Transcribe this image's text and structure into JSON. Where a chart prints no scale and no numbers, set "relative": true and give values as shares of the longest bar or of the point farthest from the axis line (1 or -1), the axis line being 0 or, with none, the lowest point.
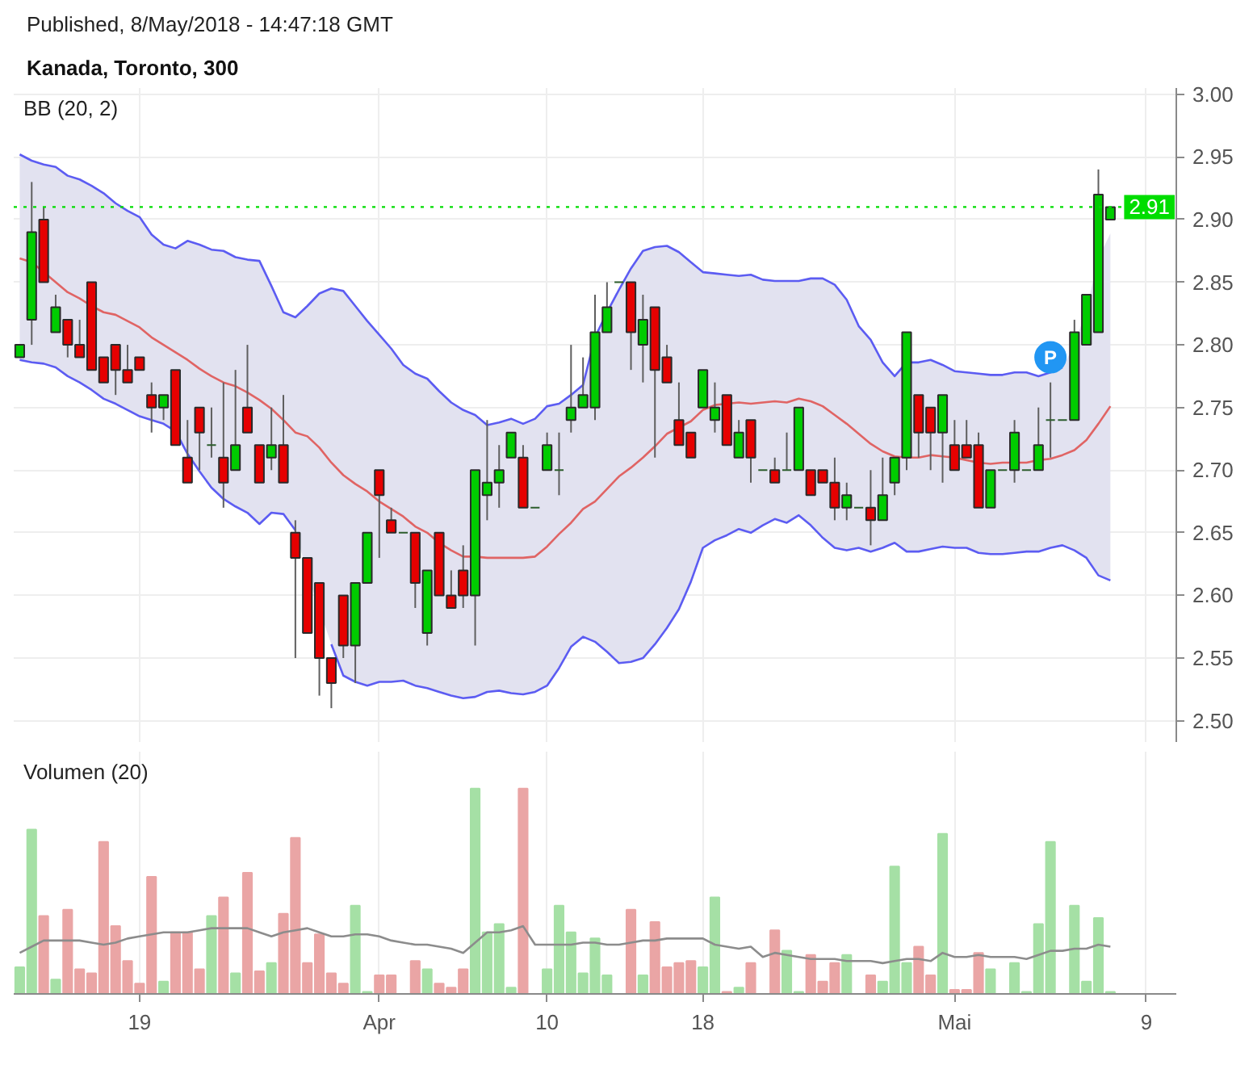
{
  "chart_data": [
    {
      "type": "candlestick",
      "title": "Kanada, Toronto, 300",
      "annotations": [
        "Published, 8/May/2018 - 14:47:18 GMT",
        "BB (20, 2)"
      ],
      "categories": [
        null,
        null,
        null,
        null,
        null,
        null,
        null,
        null,
        null,
        null,
        null,
        null,
        null,
        null,
        null,
        null,
        null,
        null,
        null,
        null,
        null,
        null,
        null,
        null,
        null,
        null,
        null,
        null,
        null,
        null,
        null,
        null,
        null,
        null,
        null,
        null,
        null,
        null,
        null,
        null,
        null,
        null,
        null,
        null,
        null,
        null,
        null,
        null,
        null,
        null,
        null,
        null,
        null,
        null,
        null,
        null,
        null,
        null,
        null,
        null,
        null,
        null,
        null,
        null,
        null,
        null,
        null,
        null,
        null,
        null,
        null,
        null,
        null,
        null,
        null,
        null,
        null,
        null,
        null,
        null,
        null,
        null,
        null,
        null,
        null,
        null,
        null,
        null,
        null,
        null,
        null,
        null,
        null,
        null,
        null,
        null,
        null
      ],
      "ohlc": [
        [
          2.79,
          2.8,
          2.79,
          2.8
        ],
        [
          2.82,
          2.93,
          2.8,
          2.89
        ],
        [
          2.9,
          2.91,
          2.85,
          2.85
        ],
        [
          2.81,
          2.84,
          2.81,
          2.83
        ],
        [
          2.82,
          2.82,
          2.79,
          2.8
        ],
        [
          2.8,
          2.82,
          2.79,
          2.79
        ],
        [
          2.85,
          2.85,
          2.78,
          2.78
        ],
        [
          2.79,
          2.79,
          2.77,
          2.77
        ],
        [
          2.8,
          2.8,
          2.76,
          2.78
        ],
        [
          2.78,
          2.8,
          2.77,
          2.77
        ],
        [
          2.79,
          2.79,
          2.78,
          2.78
        ],
        [
          2.76,
          2.77,
          2.73,
          2.75
        ],
        [
          2.75,
          2.76,
          2.74,
          2.76
        ],
        [
          2.78,
          2.78,
          2.72,
          2.72
        ],
        [
          2.71,
          2.74,
          2.69,
          2.69
        ],
        [
          2.75,
          2.75,
          2.7,
          2.73
        ],
        [
          2.72,
          2.75,
          2.71,
          2.72
        ],
        [
          2.71,
          2.77,
          2.67,
          2.69
        ],
        [
          2.7,
          2.78,
          2.7,
          2.72
        ],
        [
          2.75,
          2.8,
          2.73,
          2.73
        ],
        [
          2.72,
          2.72,
          2.69,
          2.69
        ],
        [
          2.71,
          2.75,
          2.7,
          2.72
        ],
        [
          2.72,
          2.76,
          2.69,
          2.69
        ],
        [
          2.65,
          2.66,
          2.55,
          2.63
        ],
        [
          2.63,
          2.63,
          2.57,
          2.57
        ],
        [
          2.61,
          2.61,
          2.52,
          2.55
        ],
        [
          2.55,
          2.55,
          2.51,
          2.53
        ],
        [
          2.6,
          2.6,
          2.55,
          2.56
        ],
        [
          2.56,
          2.61,
          2.53,
          2.61
        ],
        [
          2.61,
          2.65,
          2.61,
          2.65
        ],
        [
          2.7,
          2.7,
          2.63,
          2.68
        ],
        [
          2.66,
          2.67,
          2.65,
          2.65
        ],
        [
          2.65,
          2.65,
          2.65,
          2.65
        ],
        [
          2.65,
          2.65,
          2.59,
          2.61
        ],
        [
          2.57,
          2.62,
          2.56,
          2.62
        ],
        [
          2.65,
          2.65,
          2.6,
          2.6
        ],
        [
          2.6,
          2.62,
          2.59,
          2.59
        ],
        [
          2.62,
          2.64,
          2.59,
          2.6
        ],
        [
          2.6,
          2.7,
          2.56,
          2.7
        ],
        [
          2.68,
          2.74,
          2.66,
          2.69
        ],
        [
          2.69,
          2.72,
          2.67,
          2.7
        ],
        [
          2.71,
          2.73,
          2.71,
          2.73
        ],
        [
          2.71,
          2.72,
          2.67,
          2.67
        ],
        [
          2.67,
          2.67,
          2.67,
          2.67
        ],
        [
          2.7,
          2.73,
          2.7,
          2.72
        ],
        [
          2.7,
          2.73,
          2.68,
          2.7
        ],
        [
          2.74,
          2.8,
          2.73,
          2.75
        ],
        [
          2.75,
          2.79,
          2.75,
          2.76
        ],
        [
          2.75,
          2.84,
          2.74,
          2.81
        ],
        [
          2.81,
          2.85,
          2.81,
          2.83
        ],
        [
          2.85,
          2.85,
          2.85,
          2.85
        ],
        [
          2.85,
          2.85,
          2.78,
          2.81
        ],
        [
          2.8,
          2.84,
          2.77,
          2.82
        ],
        [
          2.83,
          2.83,
          2.71,
          2.78
        ],
        [
          2.79,
          2.8,
          2.77,
          2.77
        ],
        [
          2.74,
          2.77,
          2.72,
          2.72
        ],
        [
          2.73,
          2.73,
          2.71,
          2.71
        ],
        [
          2.75,
          2.78,
          2.75,
          2.78
        ],
        [
          2.74,
          2.77,
          2.73,
          2.75
        ],
        [
          2.76,
          2.76,
          2.72,
          2.72
        ],
        [
          2.71,
          2.74,
          2.71,
          2.73
        ],
        [
          2.74,
          2.74,
          2.69,
          2.71
        ],
        [
          2.7,
          2.7,
          2.7,
          2.7
        ],
        [
          2.7,
          2.71,
          2.69,
          2.69
        ],
        [
          2.7,
          2.73,
          2.7,
          2.7
        ],
        [
          2.7,
          2.75,
          2.7,
          2.75
        ],
        [
          2.7,
          2.7,
          2.68,
          2.68
        ],
        [
          2.7,
          2.7,
          2.69,
          2.69
        ],
        [
          2.69,
          2.71,
          2.66,
          2.67
        ],
        [
          2.67,
          2.69,
          2.66,
          2.68
        ],
        [
          2.67,
          2.67,
          2.67,
          2.67
        ],
        [
          2.67,
          2.7,
          2.64,
          2.66
        ],
        [
          2.66,
          2.71,
          2.66,
          2.68
        ],
        [
          2.69,
          2.71,
          2.68,
          2.71
        ],
        [
          2.71,
          2.81,
          2.7,
          2.81
        ],
        [
          2.76,
          2.76,
          2.71,
          2.73
        ],
        [
          2.75,
          2.75,
          2.7,
          2.73
        ],
        [
          2.73,
          2.76,
          2.69,
          2.76
        ],
        [
          2.72,
          2.74,
          2.7,
          2.7
        ],
        [
          2.72,
          2.74,
          2.71,
          2.71
        ],
        [
          2.72,
          2.73,
          2.67,
          2.67
        ],
        [
          2.67,
          2.7,
          2.67,
          2.7
        ],
        [
          2.7,
          2.7,
          2.7,
          2.7
        ],
        [
          2.7,
          2.74,
          2.69,
          2.73
        ],
        [
          2.7,
          2.7,
          2.7,
          2.7
        ],
        [
          2.7,
          2.75,
          2.7,
          2.72
        ],
        [
          2.74,
          2.77,
          2.71,
          2.74
        ],
        [
          2.74,
          2.74,
          2.74,
          2.74
        ],
        [
          2.74,
          2.82,
          2.74,
          2.81
        ],
        [
          2.8,
          2.84,
          2.8,
          2.84
        ],
        [
          2.81,
          2.94,
          2.81,
          2.92
        ],
        [
          2.9,
          2.91,
          2.9,
          2.91
        ],
        null,
        null,
        null,
        null,
        null
      ],
      "colors": [
        "#00cc00",
        "#00cc00",
        "#e60000",
        "#00cc00",
        "#e60000",
        "#e60000",
        "#e60000",
        "#e60000",
        "#e60000",
        "#e60000",
        "#e60000",
        "#e60000",
        "#00cc00",
        "#e60000",
        "#e60000",
        "#e60000",
        "#2d5e2d",
        "#e60000",
        "#00cc00",
        "#e60000",
        "#e60000",
        "#00cc00",
        "#e60000",
        "#e60000",
        "#e60000",
        "#e60000",
        "#e60000",
        "#e60000",
        "#00cc00",
        "#00cc00",
        "#e60000",
        "#e60000",
        "#2d5e2d",
        "#e60000",
        "#00cc00",
        "#e60000",
        "#e60000",
        "#e60000",
        "#00cc00",
        "#00cc00",
        "#00cc00",
        "#00cc00",
        "#e60000",
        "#2d5e2d",
        "#00cc00",
        "#2d5e2d",
        "#00cc00",
        "#00cc00",
        "#00cc00",
        "#00cc00",
        "#2d5e2d",
        "#e60000",
        "#00cc00",
        "#e60000",
        "#e60000",
        "#e60000",
        "#e60000",
        "#00cc00",
        "#00cc00",
        "#e60000",
        "#00cc00",
        "#e60000",
        "#2d5e2d",
        "#e60000",
        "#2d5e2d",
        "#00cc00",
        "#e60000",
        "#e60000",
        "#e60000",
        "#00cc00",
        "#2d5e2d",
        "#e60000",
        "#00cc00",
        "#00cc00",
        "#00cc00",
        "#e60000",
        "#e60000",
        "#00cc00",
        "#e60000",
        "#e60000",
        "#e60000",
        "#00cc00",
        "#2d5e2d",
        "#00cc00",
        "#2d5e2d",
        "#00cc00",
        "#2d5e2d",
        "#2d5e2d",
        "#00cc00",
        "#00cc00",
        "#00cc00",
        "#00cc00",
        null,
        null,
        null,
        null,
        null
      ],
      "series": [
        {
          "type": "line",
          "color": "#e06464",
          "values": [
            2.869,
            2.866,
            2.858,
            2.85,
            2.842,
            2.837,
            2.831,
            2.826,
            2.824,
            2.819,
            2.814,
            2.806,
            2.8,
            2.794,
            2.788,
            2.781,
            2.775,
            2.77,
            2.767,
            2.762,
            2.756,
            2.749,
            2.74,
            2.73,
            2.727,
            2.718,
            2.706,
            2.696,
            2.689,
            2.683,
            2.675,
            2.669,
            2.663,
            2.655,
            2.65,
            2.642,
            2.636,
            2.631,
            2.631,
            2.63,
            2.63,
            2.63,
            2.63,
            2.631,
            2.639,
            2.649,
            2.658,
            2.669,
            2.675,
            2.685,
            2.695,
            2.702,
            2.71,
            2.719,
            2.729,
            2.734,
            2.739,
            2.748,
            2.752,
            2.753,
            2.754,
            2.753,
            2.754,
            2.755,
            2.754,
            2.757,
            2.755,
            2.751,
            2.744,
            2.737,
            2.729,
            2.721,
            2.715,
            2.711,
            2.71,
            2.71,
            2.712,
            2.711,
            2.71,
            2.708,
            2.706,
            2.705,
            2.706,
            2.706,
            2.706,
            2.708,
            2.709,
            2.712,
            2.716,
            2.724,
            2.737,
            2.751,
            null,
            null,
            null,
            null,
            null
          ],
          "lower": [
            2.788,
            2.786,
            2.785,
            2.782,
            2.775,
            2.77,
            2.764,
            2.757,
            2.753,
            2.748,
            2.743,
            2.74,
            2.737,
            2.731,
            2.713,
            2.699,
            2.686,
            2.677,
            2.671,
            2.666,
            2.657,
            2.666,
            2.665,
            2.652,
            2.617,
            2.589,
            2.561,
            2.536,
            2.531,
            2.528,
            2.531,
            2.531,
            2.532,
            2.528,
            2.526,
            2.523,
            2.52,
            2.518,
            2.519,
            2.523,
            2.524,
            2.522,
            2.521,
            2.523,
            2.528,
            2.542,
            2.559,
            2.567,
            2.563,
            2.555,
            2.546,
            2.547,
            2.55,
            2.561,
            2.574,
            2.589,
            2.611,
            2.638,
            2.644,
            2.648,
            2.653,
            2.65,
            2.656,
            2.661,
            2.658,
            2.664,
            2.656,
            2.646,
            2.638,
            2.636,
            2.638,
            2.635,
            2.638,
            2.642,
            2.635,
            2.635,
            2.637,
            2.639,
            2.638,
            2.638,
            2.634,
            2.633,
            2.633,
            2.634,
            2.635,
            2.635,
            2.638,
            2.64,
            2.636,
            2.63,
            2.616,
            2.612,
            null,
            null,
            null,
            null,
            null
          ],
          "upper": [
            2.952,
            2.947,
            2.944,
            2.942,
            2.935,
            2.932,
            2.927,
            2.921,
            2.913,
            2.907,
            2.902,
            2.888,
            2.88,
            2.877,
            2.883,
            2.88,
            2.876,
            2.875,
            2.87,
            2.868,
            2.867,
            2.847,
            2.826,
            2.822,
            2.831,
            2.841,
            2.845,
            2.843,
            2.831,
            2.819,
            2.808,
            2.797,
            2.784,
            2.777,
            2.773,
            2.763,
            2.754,
            2.748,
            2.744,
            2.736,
            2.738,
            2.741,
            2.737,
            2.741,
            2.751,
            2.753,
            2.76,
            2.768,
            2.806,
            2.826,
            2.844,
            2.861,
            2.875,
            2.878,
            2.879,
            2.874,
            2.866,
            2.858,
            2.857,
            2.856,
            2.855,
            2.856,
            2.852,
            2.851,
            2.851,
            2.851,
            2.853,
            2.853,
            2.848,
            2.836,
            2.815,
            2.804,
            2.786,
            2.775,
            2.786,
            2.786,
            2.788,
            2.784,
            2.779,
            2.778,
            2.777,
            2.776,
            2.776,
            2.778,
            2.778,
            2.775,
            2.778,
            2.782,
            2.8,
            2.828,
            2.869,
            2.889,
            null,
            null,
            null,
            null,
            null
          ]
        },
        {
          "type": "line",
          "color": "#5c5cf2",
          "values": [
            2.952,
            2.947,
            2.944,
            2.942,
            2.935,
            2.932,
            2.927,
            2.921,
            2.913,
            2.907,
            2.902,
            2.888,
            2.88,
            2.877,
            2.883,
            2.88,
            2.876,
            2.875,
            2.87,
            2.868,
            2.867,
            2.847,
            2.826,
            2.822,
            2.831,
            2.841,
            2.845,
            2.843,
            2.831,
            2.819,
            2.808,
            2.797,
            2.784,
            2.777,
            2.773,
            2.763,
            2.754,
            2.748,
            2.744,
            2.736,
            2.738,
            2.741,
            2.737,
            2.741,
            2.751,
            2.753,
            2.76,
            2.768,
            2.806,
            2.826,
            2.844,
            2.861,
            2.875,
            2.878,
            2.879,
            2.874,
            2.866,
            2.858,
            2.857,
            2.856,
            2.855,
            2.856,
            2.852,
            2.851,
            2.851,
            2.851,
            2.853,
            2.853,
            2.848,
            2.836,
            2.815,
            2.804,
            2.786,
            2.775,
            2.786,
            2.786,
            2.788,
            2.784,
            2.779,
            2.778,
            2.777,
            2.776,
            2.776,
            2.778,
            2.778,
            2.775,
            2.778,
            2.782,
            null,
            null,
            null,
            null,
            null,
            null,
            null,
            null,
            null
          ]
        },
        {
          "type": "line",
          "color": "#5c5cf2",
          "values": [
            2.788,
            2.786,
            2.785,
            2.782,
            2.775,
            2.77,
            2.764,
            2.757,
            2.753,
            2.748,
            2.743,
            2.74,
            2.737,
            2.731,
            2.713,
            2.699,
            2.686,
            2.677,
            2.671,
            2.666,
            2.657,
            2.666,
            2.665,
            2.652,
            null,
            null,
            2.561,
            2.536,
            2.531,
            2.528,
            2.531,
            2.531,
            2.532,
            2.528,
            2.526,
            2.523,
            2.52,
            2.518,
            2.519,
            2.523,
            2.524,
            2.522,
            2.521,
            2.523,
            2.528,
            2.542,
            2.559,
            2.567,
            2.563,
            2.555,
            2.546,
            2.547,
            2.55,
            2.561,
            2.574,
            2.589,
            2.611,
            2.638,
            2.644,
            2.648,
            2.653,
            2.65,
            2.656,
            2.661,
            2.658,
            2.664,
            2.656,
            2.646,
            2.638,
            2.636,
            2.638,
            2.635,
            2.638,
            2.642,
            2.635,
            2.635,
            2.637,
            2.639,
            2.638,
            2.638,
            2.634,
            2.633,
            2.633,
            2.634,
            2.635,
            2.635,
            2.638,
            2.64,
            2.636,
            2.63,
            2.616,
            2.612,
            null,
            null,
            null,
            null,
            null
          ]
        },
        {
          "type": "scatter",
          "name": "P",
          "color": "#2196f3",
          "marker": "circle",
          "values": [
            null,
            null,
            null,
            null,
            null,
            null,
            null,
            null,
            null,
            null,
            null,
            null,
            null,
            null,
            null,
            null,
            null,
            null,
            null,
            null,
            null,
            null,
            null,
            null,
            null,
            null,
            null,
            null,
            null,
            null,
            null,
            null,
            null,
            null,
            null,
            null,
            null,
            null,
            null,
            null,
            null,
            null,
            null,
            null,
            null,
            null,
            null,
            null,
            null,
            null,
            null,
            null,
            null,
            null,
            null,
            null,
            null,
            null,
            null,
            null,
            null,
            null,
            null,
            null,
            null,
            null,
            null,
            null,
            null,
            null,
            null,
            null,
            null,
            null,
            null,
            null,
            null,
            null,
            null,
            null,
            null,
            null,
            null,
            null,
            null,
            null,
            2.79,
            null,
            null,
            null,
            null,
            null,
            null,
            null,
            null,
            null,
            null
          ]
        }
      ],
      "ylim": [
        2.483,
        3.005
      ],
      "yticks": [
        {
          "value": 2.5,
          "label": "2.50"
        },
        2.55,
        {
          "value": 2.6,
          "label": "2.60"
        },
        2.65,
        {
          "value": 2.7,
          "label": "2.70"
        },
        2.75,
        {
          "value": 2.8,
          "label": "2.80"
        },
        2.85,
        {
          "value": 2.9,
          "label": "2.90"
        },
        2.95,
        {
          "value": 3.0,
          "label": "3.00"
        }
      ],
      "grid": true,
      "tick_labels": "y",
      "ref_lines": [
        {
          "axis": "y",
          "value": 2.91,
          "label": "2.91",
          "color": "#00dd00",
          "line_style": "dotted"
        }
      ]
    },
    {
      "type": "bar",
      "relative": true,
      "categories": [
        null,
        null,
        null,
        null,
        null,
        null,
        null,
        null,
        null,
        null,
        "19",
        null,
        null,
        null,
        null,
        null,
        null,
        null,
        null,
        null,
        null,
        null,
        null,
        null,
        null,
        null,
        null,
        null,
        null,
        null,
        "Apr",
        null,
        null,
        null,
        null,
        null,
        null,
        null,
        null,
        null,
        null,
        null,
        null,
        null,
        "10",
        null,
        null,
        null,
        null,
        null,
        null,
        null,
        null,
        null,
        null,
        null,
        null,
        "18",
        null,
        null,
        null,
        null,
        null,
        null,
        null,
        null,
        null,
        null,
        null,
        null,
        null,
        null,
        null,
        null,
        null,
        null,
        null,
        null,
        "Mai",
        null,
        null,
        null,
        null,
        null,
        null,
        null,
        null,
        null,
        null,
        null,
        null,
        null,
        null,
        null,
        "9",
        null,
        null
      ],
      "series": [
        {
          "type": "bar",
          "colors": [
            "#a5e0a5",
            "#a5e0a5",
            "#eaa5a5",
            "#a5e0a5",
            "#eaa5a5",
            "#eaa5a5",
            "#eaa5a5",
            "#eaa5a5",
            "#eaa5a5",
            "#eaa5a5",
            "#eaa5a5",
            "#eaa5a5",
            "#a5e0a5",
            "#eaa5a5",
            "#eaa5a5",
            "#eaa5a5",
            "#a5e0a5",
            "#eaa5a5",
            "#a5e0a5",
            "#eaa5a5",
            "#eaa5a5",
            "#a5e0a5",
            "#eaa5a5",
            "#eaa5a5",
            "#eaa5a5",
            "#eaa5a5",
            "#eaa5a5",
            "#eaa5a5",
            "#a5e0a5",
            "#a5e0a5",
            "#eaa5a5",
            "#eaa5a5",
            "#a5e0a5",
            "#eaa5a5",
            "#a5e0a5",
            "#eaa5a5",
            "#eaa5a5",
            "#eaa5a5",
            "#a5e0a5",
            "#a5e0a5",
            "#a5e0a5",
            "#a5e0a5",
            "#eaa5a5",
            "#a5e0a5",
            "#a5e0a5",
            "#a5e0a5",
            "#a5e0a5",
            "#a5e0a5",
            "#a5e0a5",
            "#a5e0a5",
            "#a5e0a5",
            "#eaa5a5",
            "#a5e0a5",
            "#eaa5a5",
            "#eaa5a5",
            "#eaa5a5",
            "#eaa5a5",
            "#a5e0a5",
            "#a5e0a5",
            "#eaa5a5",
            "#a5e0a5",
            "#eaa5a5",
            "#a5e0a5",
            "#eaa5a5",
            "#a5e0a5",
            "#a5e0a5",
            "#eaa5a5",
            "#eaa5a5",
            "#eaa5a5",
            "#a5e0a5",
            "#a5e0a5",
            "#eaa5a5",
            "#a5e0a5",
            "#a5e0a5",
            "#a5e0a5",
            "#eaa5a5",
            "#eaa5a5",
            "#a5e0a5",
            "#eaa5a5",
            "#eaa5a5",
            "#eaa5a5",
            "#a5e0a5",
            "#a5e0a5",
            "#a5e0a5",
            "#a5e0a5",
            "#a5e0a5",
            "#a5e0a5",
            "#a5e0a5",
            "#a5e0a5",
            "#a5e0a5",
            "#a5e0a5",
            "#a5e0a5",
            null,
            null,
            null,
            null,
            null
          ],
          "values": [
            0.13,
            0.8,
            0.38,
            0.07,
            0.41,
            0.12,
            0.1,
            0.74,
            0.33,
            0.16,
            0.05,
            0.57,
            0.06,
            0.3,
            0.3,
            0.12,
            0.38,
            0.47,
            0.1,
            0.59,
            0.11,
            0.15,
            0.39,
            0.76,
            0.15,
            0.29,
            0.1,
            0.05,
            0.43,
            0.01,
            0.09,
            0.09,
            null,
            0.16,
            0.12,
            0.05,
            0.03,
            0.12,
            1.0,
            0.3,
            0.34,
            0.03,
            1.0,
            null,
            0.12,
            0.43,
            0.3,
            0.1,
            0.27,
            0.09,
            null,
            0.41,
            0.09,
            0.35,
            0.13,
            0.15,
            0.16,
            0.13,
            0.47,
            0.01,
            0.03,
            0.15,
            null,
            0.31,
            0.21,
            0.01,
            0.19,
            0.06,
            0.15,
            0.19,
            null,
            0.09,
            0.06,
            0.62,
            0.15,
            0.23,
            0.09,
            0.78,
            0.02,
            0.02,
            0.2,
            0.12,
            null,
            0.15,
            0.01,
            0.34,
            0.74,
            null,
            0.43,
            0.06,
            0.37,
            0.01,
            null,
            null,
            null,
            null,
            null
          ]
        },
        {
          "type": "line",
          "color": "#8c8c8c",
          "values": [
            0.2,
            0.23,
            0.26,
            0.26,
            0.26,
            0.26,
            0.25,
            0.24,
            0.25,
            0.27,
            0.28,
            0.29,
            0.3,
            0.3,
            0.3,
            0.31,
            0.32,
            0.32,
            0.32,
            0.32,
            0.3,
            0.28,
            0.3,
            0.31,
            0.32,
            0.3,
            0.28,
            0.28,
            0.29,
            0.29,
            0.28,
            0.26,
            0.25,
            0.24,
            0.24,
            0.23,
            0.22,
            0.2,
            0.25,
            0.3,
            0.3,
            0.31,
            0.33,
            0.24,
            0.24,
            0.24,
            0.24,
            0.25,
            0.25,
            0.24,
            0.24,
            0.25,
            0.26,
            0.26,
            0.27,
            0.27,
            0.27,
            0.27,
            0.24,
            0.23,
            0.22,
            0.23,
            0.18,
            0.2,
            0.19,
            0.18,
            0.17,
            0.17,
            0.17,
            0.16,
            0.16,
            0.16,
            0.15,
            0.16,
            0.17,
            0.17,
            0.16,
            0.2,
            0.18,
            0.18,
            0.19,
            0.18,
            0.18,
            0.18,
            0.17,
            0.19,
            0.21,
            0.21,
            0.22,
            0.22,
            0.24,
            0.23,
            null,
            null,
            null,
            null,
            null
          ]
        }
      ],
      "grid": "x",
      "annotations": [
        "Volumen (20)"
      ]
    }
  ]
}
